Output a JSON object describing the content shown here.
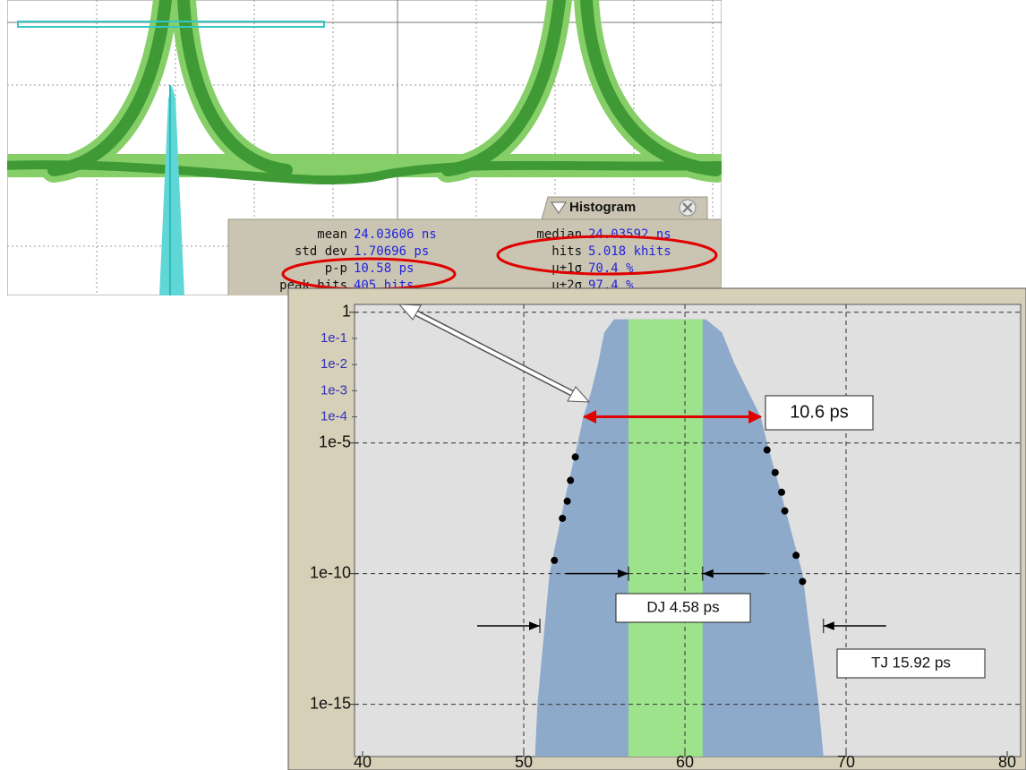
{
  "scope_panel": {
    "title": "Histogram",
    "rows": [
      [
        "mean",
        "24.03606 ns",
        "median",
        "24.03592 ns"
      ],
      [
        "std dev",
        "1.70696 ps",
        "hits",
        "5.018 khits"
      ],
      [
        "p-p",
        "10.58 ps",
        "μ±1σ",
        "70.4 %"
      ],
      [
        "peak hits",
        "405 hits",
        "μ±2σ",
        "97.4 %"
      ]
    ]
  },
  "chart_data": {
    "type": "area",
    "yscale": "log",
    "grid": true,
    "xlim": [
      40,
      80
    ],
    "xticks": [
      40,
      50,
      60,
      70,
      80
    ],
    "ylim": [
      1e-17,
      2
    ],
    "yticks": [
      1,
      {
        "value": 1e-05,
        "label": "1e-5"
      },
      {
        "value": 1e-10,
        "label": "1e-10"
      },
      {
        "value": 1e-15,
        "label": "1e-15"
      }
    ],
    "yminor_ticks": [
      {
        "value": 0.1,
        "label": "1e-1"
      },
      {
        "value": 0.01,
        "label": "1e-2"
      },
      {
        "value": 0.001,
        "label": "1e-3"
      },
      {
        "value": 0.0001,
        "label": "1e-4"
      }
    ],
    "yminor_color": "#3333bb",
    "series": [
      {
        "type": "area",
        "color": "#8eaacb",
        "x": [
          50.7,
          50.85,
          51.6,
          52.6,
          53.35,
          53.7,
          54.2,
          54.6,
          55.0,
          55.6,
          61.3,
          62.3,
          63.1,
          63.9,
          64.7,
          65.1,
          66.0,
          67.3,
          68.3,
          68.6
        ],
        "values": [
          1e-17,
          1e-15,
          1e-10,
          1e-07,
          1e-05,
          0.0001,
          0.001,
          0.01,
          0.17,
          0.54,
          0.54,
          0.17,
          0.01,
          0.001,
          0.0001,
          1e-05,
          1e-07,
          1e-10,
          1e-15,
          1e-17
        ]
      },
      {
        "type": "area",
        "color": "#9de38b",
        "x": [
          56.5,
          61.1
        ],
        "values": [
          0.54,
          0.54
        ]
      },
      {
        "type": "scatter",
        "color": "#000000",
        "x": [
          51.9,
          52.4,
          52.7,
          52.9,
          53.2,
          65.1,
          65.6,
          66.0,
          66.2,
          66.9,
          67.3
        ],
        "values": [
          3.2e-10,
          1.3e-08,
          5.9e-08,
          3.7e-07,
          2.9e-06,
          5.4e-06,
          7.4e-07,
          1.3e-07,
          2.5e-08,
          5e-10,
          5e-11
        ]
      }
    ],
    "annotations": [
      {
        "text": "10.6 ps",
        "style": "span",
        "color": "#e00000",
        "x": [
          53.75,
          64.7
        ],
        "y": 0.0001
      },
      {
        "text": "DJ 4.58 ps",
        "style": "inward",
        "color": "#000000",
        "x": [
          56.5,
          61.1
        ],
        "y": 1e-10
      },
      {
        "text": "TJ 15.92 ps",
        "style": "inward",
        "color": "#000000",
        "x": [
          51.0,
          68.6
        ],
        "y": 1e-12
      }
    ]
  }
}
